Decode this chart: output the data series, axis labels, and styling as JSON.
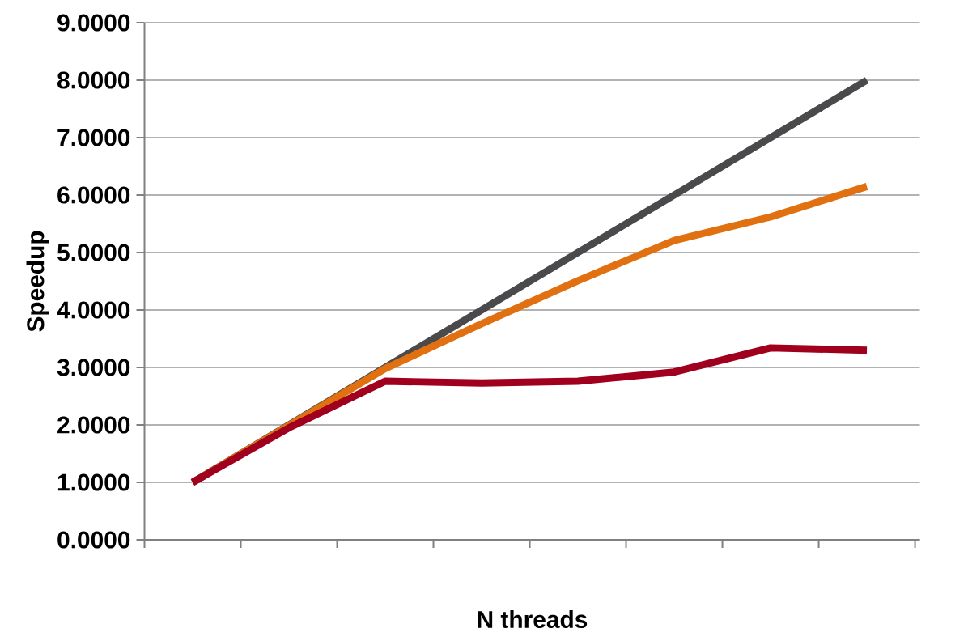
{
  "chart_data": {
    "type": "line",
    "xlabel": "N threads",
    "ylabel": "Speedup",
    "categories": [
      null,
      null,
      null,
      null,
      null,
      null,
      null,
      null
    ],
    "series": [
      {
        "color": "#4a4a4c",
        "values": [
          1,
          2,
          3,
          4,
          5,
          6,
          7,
          8
        ]
      },
      {
        "color": "#e07010",
        "values": [
          1,
          1.99,
          2.98,
          3.76,
          4.51,
          5.21,
          5.62,
          6.15
        ]
      },
      {
        "color": "#a0001e",
        "values": [
          1,
          1.95,
          2.76,
          2.73,
          2.76,
          2.92,
          3.34,
          3.3
        ]
      }
    ],
    "ylim": [
      0,
      9
    ],
    "yticks": [
      {
        "value": 0,
        "label": "0.0000"
      },
      {
        "value": 1,
        "label": "1.0000"
      },
      {
        "value": 2,
        "label": "2.0000"
      },
      {
        "value": 3,
        "label": "3.0000"
      },
      {
        "value": 4,
        "label": "4.0000"
      },
      {
        "value": 5,
        "label": "5.0000"
      },
      {
        "value": 6,
        "label": "6.0000"
      },
      {
        "value": 7,
        "label": "7.0000"
      },
      {
        "value": 8,
        "label": "8.0000"
      },
      {
        "value": 9,
        "label": "9.0000"
      }
    ],
    "grid": "y",
    "marker": "none",
    "line_style": "solid"
  }
}
